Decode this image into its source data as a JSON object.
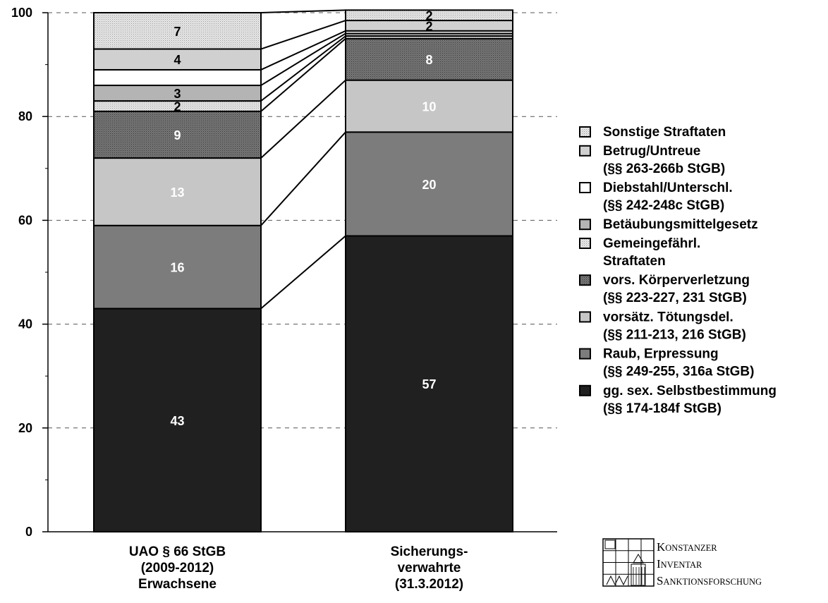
{
  "chart_data": {
    "type": "bar",
    "stacked": true,
    "ylim": [
      0,
      100
    ],
    "yticks": [
      "0",
      "20",
      "40",
      "60",
      "80",
      "100"
    ],
    "grid": true,
    "legend_position": "right",
    "categories": [
      [
        "UAO § 66 StGB",
        "(2009-2012)",
        "Erwachsene"
      ],
      [
        "Sicherungs-",
        "verwahrte",
        "(31.3.2012)"
      ]
    ],
    "series": [
      {
        "key": "sex",
        "name": [
          "gg. sex. Selbstbestimmung",
          "(§§ 174-184f StGB)"
        ],
        "values": [
          43,
          57
        ],
        "labels": [
          "43",
          "57"
        ],
        "fill": "#202020",
        "label_color": "#ffffff"
      },
      {
        "key": "raub",
        "name": [
          "Raub, Erpressung",
          "(§§ 249-255, 316a StGB)"
        ],
        "values": [
          16,
          20
        ],
        "labels": [
          "16",
          "20"
        ],
        "fill": "#7c7c7c",
        "label_color": "#ffffff"
      },
      {
        "key": "toet",
        "name": [
          "vorsätz. Tötungsdel.",
          "(§§ 211-213, 216 StGB)"
        ],
        "values": [
          13,
          10
        ],
        "labels": [
          "13",
          "10"
        ],
        "fill": "#c6c6c6",
        "label_color": "#ffffff"
      },
      {
        "key": "kv",
        "name": [
          "vors. Körperverletzung",
          "(§§ 223-227, 231 StGB)"
        ],
        "values": [
          9,
          8
        ],
        "labels": [
          "9",
          "8"
        ],
        "fill": "#6e6e6e",
        "label_color": "#ffffff"
      },
      {
        "key": "gem",
        "name": [
          "Gemeingefährl.",
          "Straftaten"
        ],
        "values": [
          2,
          0.5
        ],
        "labels": [
          "2",
          ""
        ],
        "fill": "#e0e0e0",
        "label_color": "#000000"
      },
      {
        "key": "btm",
        "name": [
          "Betäubungsmittelgesetz"
        ],
        "values": [
          3,
          0.5
        ],
        "labels": [
          "3",
          ""
        ],
        "fill": "#b4b4b4",
        "label_color": "#000000"
      },
      {
        "key": "dieb",
        "name": [
          "Diebstahl/Unterschl.",
          "(§§ 242-248c StGB)"
        ],
        "values": [
          3,
          0.5
        ],
        "labels": [
          "",
          ""
        ],
        "fill": "#ffffff",
        "label_color": "#000000"
      },
      {
        "key": "betrug",
        "name": [
          "Betrug/Untreue",
          "(§§ 263-266b StGB)"
        ],
        "values": [
          4,
          2
        ],
        "labels": [
          "4",
          "2"
        ],
        "fill": "#d0d0d0",
        "label_color": "#000000"
      },
      {
        "key": "sonst",
        "name": [
          "Sonstige Straftaten"
        ],
        "values": [
          7,
          2
        ],
        "labels": [
          "7",
          "2"
        ],
        "fill": "#e6e6e6",
        "label_color": "#000000"
      }
    ]
  },
  "logo": {
    "lines": [
      {
        "cap": "K",
        "rest": "ONSTANZER"
      },
      {
        "cap": "I",
        "rest": "NVENTAR"
      },
      {
        "cap": "S",
        "rest": "ANKTIONSFORSCHUNG"
      }
    ]
  }
}
